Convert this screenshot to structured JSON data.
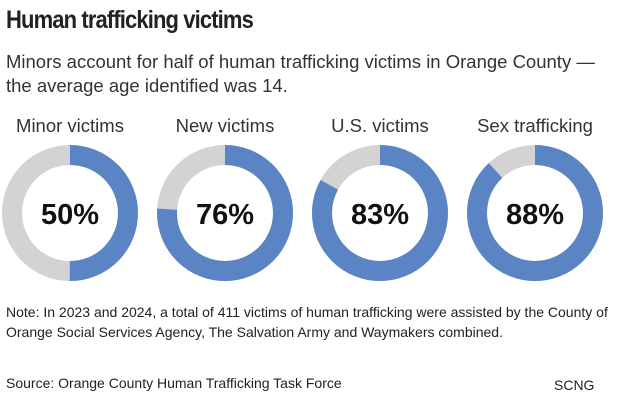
{
  "header": {
    "title": "Human trafficking victims",
    "subtitle": "Minors account for half of human trafficking victims in Orange County — the average age identified was 14."
  },
  "chart_data": {
    "type": "pie",
    "variant": "donut",
    "colors": {
      "value": "#5b84c4",
      "remainder": "#d3d3d3"
    },
    "series": [
      {
        "label": "Minor victims",
        "value": 50,
        "display": "50%"
      },
      {
        "label": "New victims",
        "value": 76,
        "display": "76%"
      },
      {
        "label": "U.S. victims",
        "value": 83,
        "display": "83%"
      },
      {
        "label": "Sex trafficking",
        "value": 88,
        "display": "88%"
      }
    ]
  },
  "footer": {
    "note": "Note: In 2023 and 2024, a total of 411 victims of human trafficking were assisted by the County of Orange Social Services Agency, The Salvation Army and Waymakers combined.",
    "source": "Source: Orange County Human Trafficking Task Force",
    "credit": "SCNG"
  }
}
